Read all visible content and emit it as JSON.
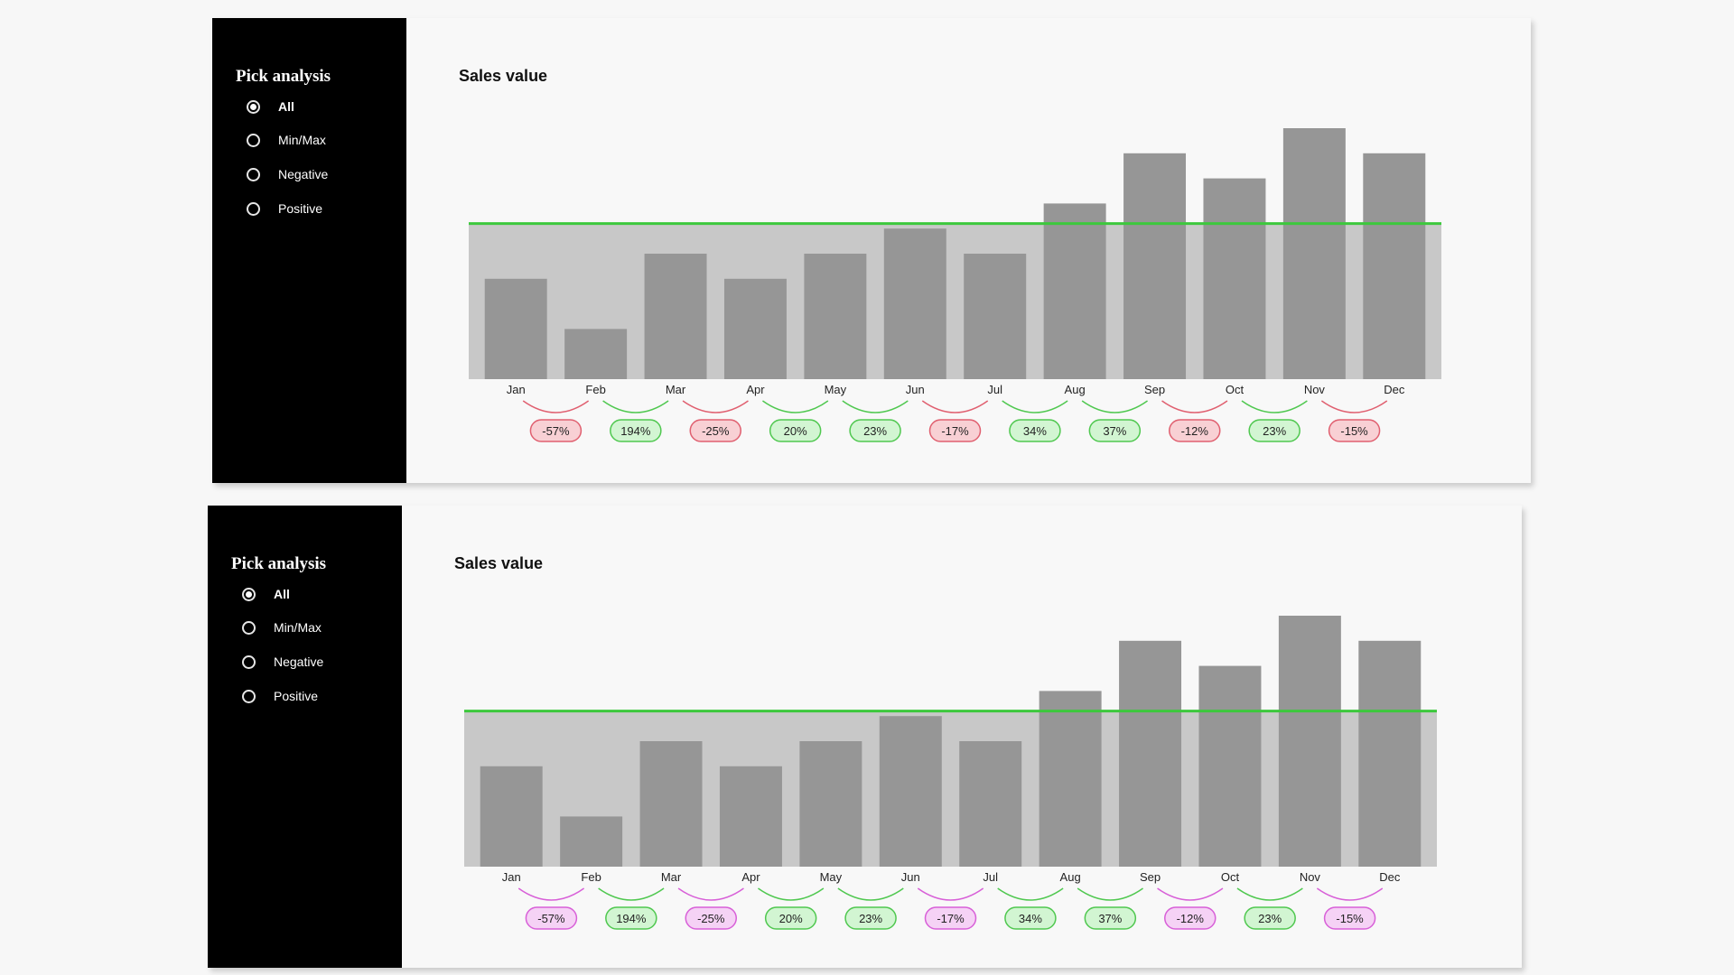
{
  "panels": [
    {
      "sidebar": {
        "title": "Pick analysis",
        "options": [
          "All",
          "Min/Max",
          "Negative",
          "Positive"
        ],
        "selected": "All"
      },
      "chart_title": "Sales value",
      "negative_color": "#e06070",
      "negative_fill": "#f8d0d4",
      "positive_color": "#50c850",
      "positive_fill": "#d2f5d2"
    },
    {
      "sidebar": {
        "title": "Pick analysis",
        "options": [
          "All",
          "Min/Max",
          "Negative",
          "Positive"
        ],
        "selected": "All"
      },
      "chart_title": "Sales value",
      "negative_color": "#d860d8",
      "negative_fill": "#f5d2f5",
      "positive_color": "#50c850",
      "positive_fill": "#d2f5d2"
    }
  ],
  "chart_data": [
    {
      "type": "bar",
      "title": "Sales value",
      "categories": [
        "Jan",
        "Feb",
        "Mar",
        "Apr",
        "May",
        "Jun",
        "Jul",
        "Aug",
        "Sep",
        "Oct",
        "Nov",
        "Dec"
      ],
      "values": [
        40,
        20,
        50,
        40,
        50,
        60,
        50,
        70,
        90,
        80,
        100,
        90
      ],
      "average_line": 62,
      "changes": [
        "-57%",
        "194%",
        "-25%",
        "20%",
        "23%",
        "-17%",
        "34%",
        "37%",
        "-12%",
        "23%",
        "-15%"
      ],
      "change_signs": [
        -1,
        1,
        -1,
        1,
        1,
        -1,
        1,
        1,
        -1,
        1,
        -1
      ],
      "colors": {
        "bar": "#969696",
        "band": "#c8c8c8",
        "line": "#3cc83c"
      }
    },
    {
      "type": "bar",
      "title": "Sales value",
      "categories": [
        "Jan",
        "Feb",
        "Mar",
        "Apr",
        "May",
        "Jun",
        "Jul",
        "Aug",
        "Sep",
        "Oct",
        "Nov",
        "Dec"
      ],
      "values": [
        40,
        20,
        50,
        40,
        50,
        60,
        50,
        70,
        90,
        80,
        100,
        90
      ],
      "average_line": 62,
      "changes": [
        "-57%",
        "194%",
        "-25%",
        "20%",
        "23%",
        "-17%",
        "34%",
        "37%",
        "-12%",
        "23%",
        "-15%"
      ],
      "change_signs": [
        -1,
        1,
        -1,
        1,
        1,
        -1,
        1,
        1,
        -1,
        1,
        -1
      ],
      "colors": {
        "bar": "#969696",
        "band": "#c8c8c8",
        "line": "#3cc83c"
      }
    }
  ]
}
